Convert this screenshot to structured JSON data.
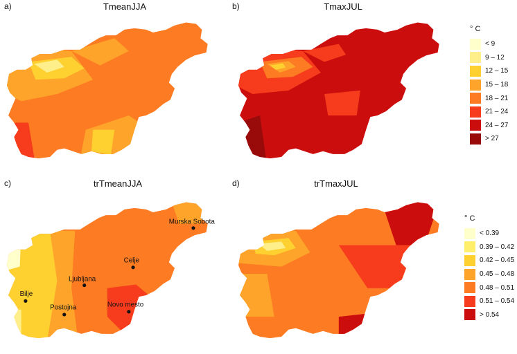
{
  "panels": [
    {
      "letter": "a)",
      "title": "TmeanJJA"
    },
    {
      "letter": "b)",
      "title": "TmaxJUL"
    },
    {
      "letter": "c)",
      "title": "trTmeanJJA"
    },
    {
      "letter": "d)",
      "title": "trTmaxJUL"
    }
  ],
  "legend_top": {
    "unit": "° C",
    "items": [
      {
        "label": "< 9",
        "color": "#ffffcc"
      },
      {
        "label": "9 – 12",
        "color": "#ffef8a"
      },
      {
        "label": "12 – 15",
        "color": "#fed030"
      },
      {
        "label": "15 – 18",
        "color": "#fea42a"
      },
      {
        "label": "18 – 21",
        "color": "#fd7b22"
      },
      {
        "label": "21 – 24",
        "color": "#f63c1c"
      },
      {
        "label": "24 – 27",
        "color": "#cc0d0d"
      },
      {
        "label": "> 27",
        "color": "#990b0b"
      }
    ]
  },
  "legend_bottom": {
    "unit": "° C",
    "items": [
      {
        "label": "< 0.39",
        "color": "#ffffcc"
      },
      {
        "label": "0.39 – 0.42",
        "color": "#ffef6a"
      },
      {
        "label": "0.42 – 0.45",
        "color": "#fed030"
      },
      {
        "label": "0.45 – 0.48",
        "color": "#fea42a"
      },
      {
        "label": "0.48 – 0.51",
        "color": "#fd7b22"
      },
      {
        "label": "0.51 – 0.54",
        "color": "#f63c1c"
      },
      {
        "label": "> 0.54",
        "color": "#cc0d0d"
      }
    ]
  },
  "cities": [
    "Murska Sobota",
    "Celje",
    "Ljubljana",
    "Bilje",
    "Postojna",
    "Novo mesto"
  ]
}
